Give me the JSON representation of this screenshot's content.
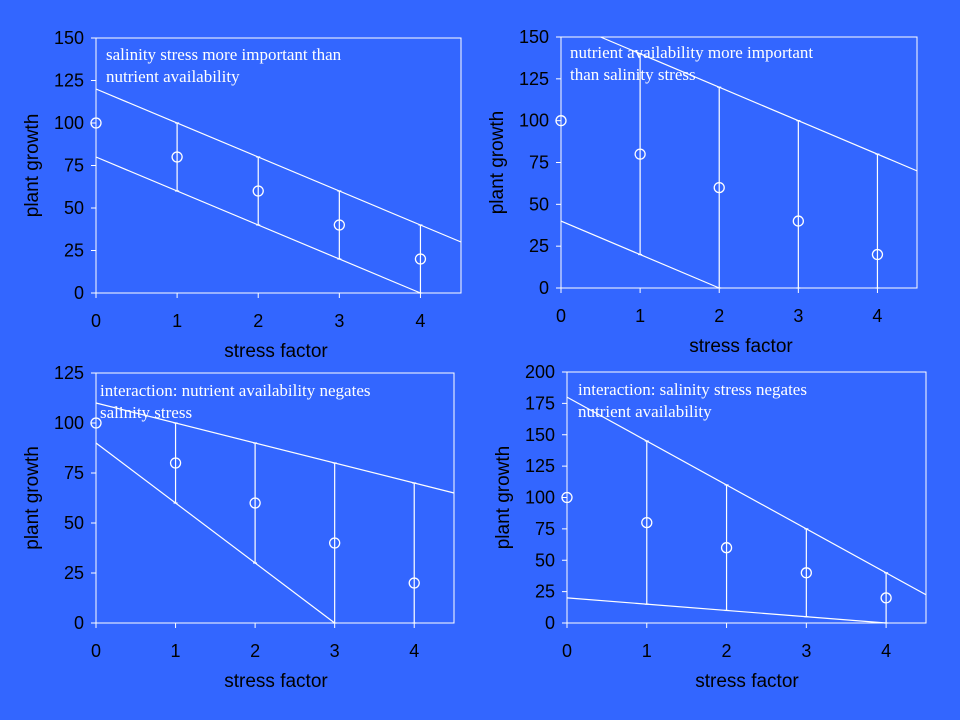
{
  "chart_data": [
    {
      "type": "scatter",
      "annotation": [
        "salinity stress more important than",
        "nutrient availability"
      ],
      "xlabel": "stress factor",
      "ylabel": "plant growth",
      "xlim": [
        0,
        4.5
      ],
      "ylim": [
        0,
        150
      ],
      "xticks": [
        0,
        1,
        2,
        3,
        4
      ],
      "yticks": [
        0,
        25,
        50,
        75,
        100,
        125,
        150
      ],
      "points": {
        "x": [
          0,
          1,
          2,
          3,
          4
        ],
        "y": [
          100,
          80,
          60,
          40,
          20
        ]
      },
      "lines": [
        {
          "x": [
            0,
            4.5
          ],
          "y": [
            120,
            30
          ]
        },
        {
          "x": [
            0,
            4
          ],
          "y": [
            80,
            0
          ]
        }
      ],
      "error_bars": [
        {
          "x": 1,
          "low": 60,
          "high": 100
        },
        {
          "x": 2,
          "low": 40,
          "high": 80
        },
        {
          "x": 3,
          "low": 20,
          "high": 60
        },
        {
          "x": 4,
          "low": 0,
          "high": 40
        }
      ]
    },
    {
      "type": "scatter",
      "annotation": [
        "nutrient availability more important",
        "than salinity stress"
      ],
      "xlabel": "stress factor",
      "ylabel": "plant growth",
      "xlim": [
        0,
        4.5
      ],
      "ylim": [
        0,
        150
      ],
      "xticks": [
        0,
        1,
        2,
        3,
        4
      ],
      "yticks": [
        0,
        25,
        50,
        75,
        100,
        125,
        150
      ],
      "points": {
        "x": [
          0,
          1,
          2,
          3,
          4
        ],
        "y": [
          100,
          80,
          60,
          40,
          20
        ]
      },
      "lines": [
        {
          "x": [
            0.5,
            4.5
          ],
          "y": [
            150,
            70
          ]
        },
        {
          "x": [
            0,
            2
          ],
          "y": [
            40,
            0
          ]
        }
      ],
      "error_bars": [
        {
          "x": 1,
          "low": 20,
          "high": 140
        },
        {
          "x": 2,
          "low": 0,
          "high": 120
        },
        {
          "x": 3,
          "low": 0,
          "high": 100
        },
        {
          "x": 4,
          "low": 0,
          "high": 80
        }
      ]
    },
    {
      "type": "scatter",
      "annotation": [
        "interaction: nutrient availability negates",
        "salinity stress"
      ],
      "xlabel": "stress factor",
      "ylabel": "plant growth",
      "xlim": [
        0,
        4.5
      ],
      "ylim": [
        0,
        125
      ],
      "xticks": [
        0,
        1,
        2,
        3,
        4
      ],
      "yticks": [
        0,
        25,
        50,
        75,
        100,
        125
      ],
      "points": {
        "x": [
          0,
          1,
          2,
          3,
          4
        ],
        "y": [
          100,
          80,
          60,
          40,
          20
        ]
      },
      "lines": [
        {
          "x": [
            0,
            4.5
          ],
          "y": [
            110,
            65
          ]
        },
        {
          "x": [
            0,
            3
          ],
          "y": [
            90,
            0
          ]
        }
      ],
      "error_bars": [
        {
          "x": 1,
          "low": 60,
          "high": 100
        },
        {
          "x": 2,
          "low": 30,
          "high": 90
        },
        {
          "x": 3,
          "low": 0,
          "high": 80
        },
        {
          "x": 4,
          "low": 0,
          "high": 70
        }
      ]
    },
    {
      "type": "scatter",
      "annotation": [
        "interaction: salinity stress negates",
        "nutrient availability"
      ],
      "xlabel": "stress factor",
      "ylabel": "plant growth",
      "xlim": [
        0,
        4.5
      ],
      "ylim": [
        0,
        200
      ],
      "xticks": [
        0,
        1,
        2,
        3,
        4
      ],
      "yticks": [
        0,
        25,
        50,
        75,
        100,
        125,
        150,
        175,
        200
      ],
      "points": {
        "x": [
          0,
          1,
          2,
          3,
          4
        ],
        "y": [
          100,
          80,
          60,
          40,
          20
        ]
      },
      "lines": [
        {
          "x": [
            0,
            4.5
          ],
          "y": [
            180,
            22.5
          ]
        },
        {
          "x": [
            0,
            4
          ],
          "y": [
            20,
            0
          ]
        }
      ],
      "error_bars": [
        {
          "x": 1,
          "low": 15,
          "high": 145
        },
        {
          "x": 2,
          "low": 10,
          "high": 110
        },
        {
          "x": 3,
          "low": 5,
          "high": 75
        },
        {
          "x": 4,
          "low": 0,
          "high": 40
        }
      ]
    }
  ]
}
